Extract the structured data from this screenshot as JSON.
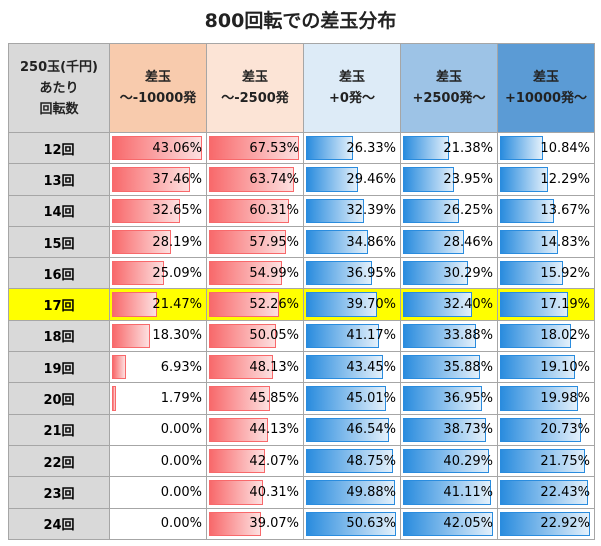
{
  "header": {
    "title": "800回転での差玉分布"
  },
  "table": {
    "corner": [
      "250玉(千円)",
      "あたり",
      "回転数"
    ],
    "columns": [
      [
        "差玉",
        "～-10000発"
      ],
      [
        "差玉",
        "～-2500発"
      ],
      [
        "差玉",
        "+0発～"
      ],
      [
        "差玉",
        "+2500発～"
      ],
      [
        "差玉",
        "+10000発～"
      ]
    ],
    "highlight_row": 5,
    "rows": [
      [
        "12回",
        "43.06%",
        "67.53%",
        "26.33%",
        "21.38%",
        "10.84%"
      ],
      [
        "13回",
        "37.46%",
        "63.74%",
        "29.46%",
        "23.95%",
        "12.29%"
      ],
      [
        "14回",
        "32.65%",
        "60.31%",
        "32.39%",
        "26.25%",
        "13.67%"
      ],
      [
        "15回",
        "28.19%",
        "57.95%",
        "34.86%",
        "28.46%",
        "14.83%"
      ],
      [
        "16回",
        "25.09%",
        "54.99%",
        "36.95%",
        "30.29%",
        "15.92%"
      ],
      [
        "17回",
        "21.47%",
        "52.26%",
        "39.70%",
        "32.40%",
        "17.19%"
      ],
      [
        "18回",
        "18.30%",
        "50.05%",
        "41.17%",
        "33.88%",
        "18.02%"
      ],
      [
        "19回",
        "6.93%",
        "48.13%",
        "43.45%",
        "35.88%",
        "19.10%"
      ],
      [
        "20回",
        "1.79%",
        "45.85%",
        "45.01%",
        "36.95%",
        "19.98%"
      ],
      [
        "21回",
        "0.00%",
        "44.13%",
        "46.54%",
        "38.73%",
        "20.73%"
      ],
      [
        "22回",
        "0.00%",
        "42.07%",
        "48.75%",
        "40.29%",
        "21.75%"
      ],
      [
        "23回",
        "0.00%",
        "40.31%",
        "49.88%",
        "41.11%",
        "22.43%"
      ],
      [
        "24回",
        "0.00%",
        "39.07%",
        "50.63%",
        "42.05%",
        "22.92%"
      ]
    ]
  }
}
